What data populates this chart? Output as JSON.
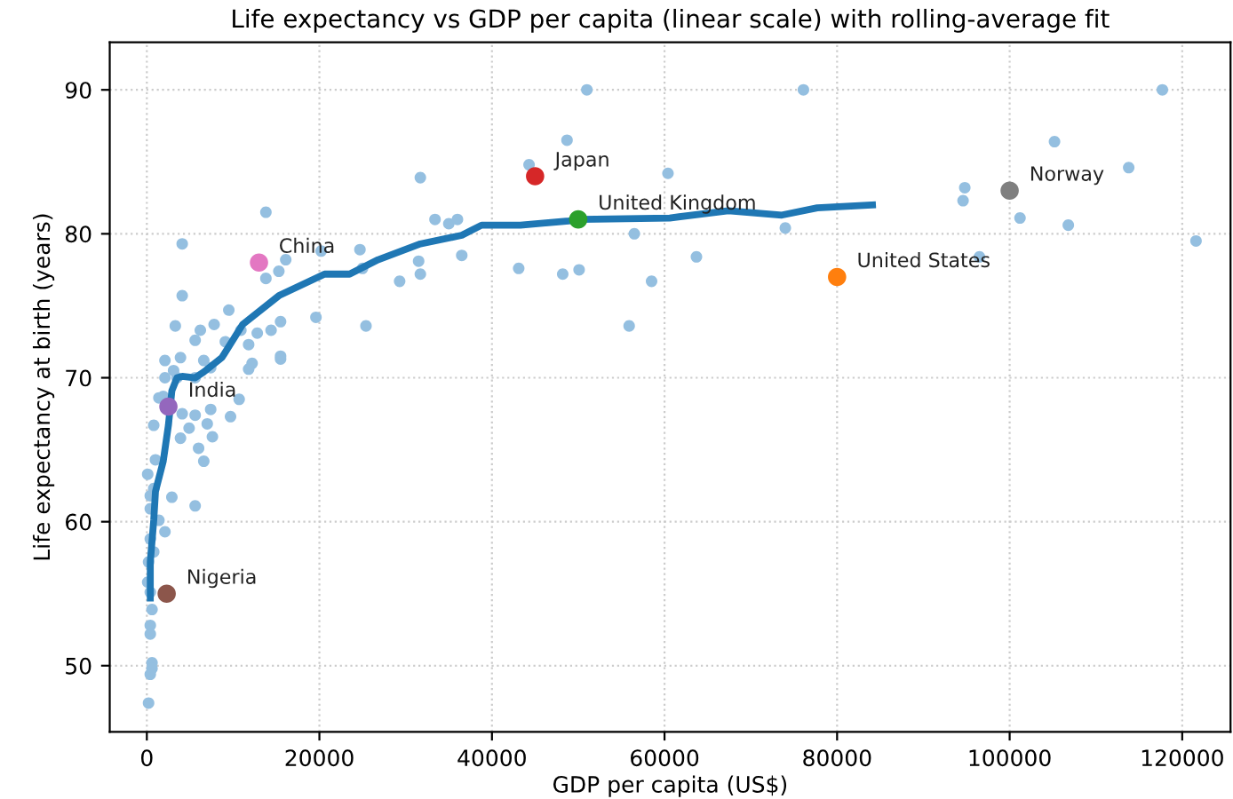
{
  "chart_data": {
    "type": "scatter",
    "title": "Life expectancy vs GDP per capita (linear scale) with rolling-average fit",
    "xlabel": "GDP per capita (US$)",
    "ylabel": "Life expectancy at birth (years)",
    "xlim": [
      -4300,
      125600
    ],
    "ylim": [
      45.4,
      93.3
    ],
    "xticks": [
      0,
      20000,
      40000,
      60000,
      80000,
      100000,
      120000
    ],
    "yticks": [
      50,
      60,
      70,
      80,
      90
    ],
    "grid": true,
    "marker": "circle",
    "series": [
      {
        "type": "scatter",
        "color": "#94bfe0",
        "x": [
          51000,
          76100,
          117700,
          48700,
          105200,
          113800,
          60400,
          94800,
          94600,
          101200,
          106800,
          56500,
          74000,
          121600,
          63700,
          96500,
          48200,
          50100,
          58500,
          55900,
          44300,
          31700,
          13800,
          33400,
          35000,
          36000,
          4100,
          16100,
          24700,
          20200,
          36500,
          31500,
          25000,
          31700,
          29300,
          15300,
          13800,
          43100,
          4100,
          9500,
          19600,
          25400,
          15500,
          7800,
          3300,
          6200,
          10900,
          12800,
          14400,
          5600,
          9100,
          11800,
          2100,
          3900,
          6600,
          12200,
          15500,
          7400,
          3500,
          5600,
          10700,
          7400,
          5600,
          1400,
          800,
          7600,
          4900,
          11800,
          15500,
          9700,
          7000,
          6000,
          6600,
          1000,
          2900,
          5600,
          800,
          400,
          1400,
          2100,
          400,
          800,
          200,
          600,
          400,
          400,
          600,
          600,
          400,
          200,
          400,
          100,
          400,
          1900,
          2100,
          3100,
          4100,
          3900,
          100
        ],
        "values": [
          90,
          90,
          90,
          86.5,
          86.4,
          84.6,
          84.2,
          83.2,
          82.3,
          81.1,
          80.6,
          80.0,
          80.4,
          79.5,
          78.4,
          78.4,
          77.2,
          77.5,
          76.7,
          73.6,
          84.8,
          83.9,
          81.5,
          81.0,
          80.7,
          81.0,
          79.3,
          78.2,
          78.9,
          78.8,
          78.5,
          78.1,
          77.6,
          77.2,
          76.7,
          77.4,
          76.9,
          77.6,
          75.7,
          74.7,
          74.2,
          73.6,
          73.9,
          73.7,
          73.6,
          73.3,
          73.3,
          73.1,
          73.3,
          72.6,
          72.5,
          72.3,
          71.2,
          71.4,
          71.2,
          71.0,
          71.5,
          70.7,
          70.0,
          70.0,
          68.5,
          67.8,
          67.4,
          68.6,
          66.7,
          65.9,
          66.5,
          70.6,
          71.3,
          67.3,
          66.8,
          65.1,
          64.2,
          64.3,
          61.7,
          61.1,
          62.3,
          60.9,
          60.1,
          59.3,
          58.8,
          57.9,
          57.2,
          53.9,
          52.8,
          52.2,
          50.2,
          49.8,
          49.4,
          47.4,
          55.1,
          55.8,
          61.8,
          68.7,
          70.0,
          70.5,
          67.5,
          65.8,
          63.3
        ]
      },
      {
        "type": "line",
        "color": "#1f77b4",
        "line_style": "solid",
        "marker": "none",
        "x": [
          400,
          400,
          800,
          1000,
          1900,
          2500,
          2900,
          3500,
          4100,
          5600,
          6600,
          8700,
          11100,
          15300,
          20600,
          23500,
          26800,
          31700,
          36500,
          38800,
          43300,
          48900,
          50300,
          60600,
          67400,
          73600,
          77700,
          84100
        ],
        "values": [
          54.7,
          57.2,
          60.1,
          62.1,
          64.2,
          66.7,
          69.1,
          70.0,
          70.1,
          70.0,
          70.4,
          71.4,
          73.7,
          75.7,
          77.2,
          77.2,
          78.2,
          79.3,
          79.9,
          80.6,
          80.6,
          80.9,
          81.0,
          81.1,
          81.6,
          81.3,
          81.8,
          82.0
        ]
      },
      {
        "type": "scatter",
        "name": "Japan",
        "color": "#d62728",
        "x": [
          45000
        ],
        "values": [
          84
        ]
      },
      {
        "type": "scatter",
        "name": "United Kingdom",
        "color": "#2ca02c",
        "x": [
          50000
        ],
        "values": [
          81
        ]
      },
      {
        "type": "scatter",
        "name": "United States",
        "color": "#ff7f0e",
        "x": [
          80000
        ],
        "values": [
          77
        ]
      },
      {
        "type": "scatter",
        "name": "Norway",
        "color": "#7f7f7f",
        "x": [
          100000
        ],
        "values": [
          83
        ]
      },
      {
        "type": "scatter",
        "name": "China",
        "color": "#e377c2",
        "x": [
          13000
        ],
        "values": [
          78
        ]
      },
      {
        "type": "scatter",
        "name": "India",
        "color": "#9467bd",
        "x": [
          2500
        ],
        "values": [
          68
        ]
      },
      {
        "type": "scatter",
        "name": "Nigeria",
        "color": "#8c564b",
        "x": [
          2300
        ],
        "values": [
          55
        ]
      }
    ]
  }
}
